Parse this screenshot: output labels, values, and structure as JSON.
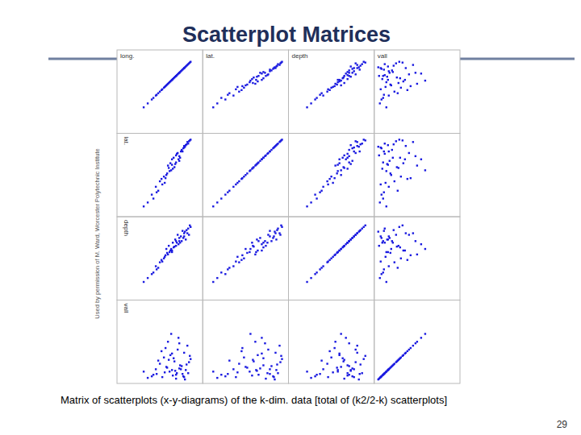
{
  "header": {
    "title": "Scatterplot Matrices"
  },
  "chart_data": {
    "type": "scatter_matrix",
    "color": "#1a1ae0",
    "marker": "square",
    "tick_labels": false,
    "xlim": [
      0,
      100
    ],
    "ylim": [
      0,
      100
    ],
    "dimensions": [
      {
        "name": "long.",
        "values": [
          62,
          70,
          75,
          80,
          55,
          45,
          85,
          68,
          72,
          40,
          58,
          82,
          65,
          78,
          50,
          35,
          88,
          60,
          74,
          66,
          84,
          56,
          70,
          48,
          77,
          63,
          81,
          52,
          69,
          86,
          42,
          73,
          59,
          79,
          67,
          30,
          83,
          57,
          71,
          64,
          76,
          53,
          87,
          61,
          74,
          46,
          80,
          65
        ]
      },
      {
        "name": "lat.",
        "values": [
          55,
          66,
          72,
          85,
          48,
          35,
          90,
          60,
          78,
          25,
          50,
          88,
          70,
          80,
          42,
          15,
          95,
          62,
          68,
          58,
          92,
          40,
          75,
          30,
          82,
          65,
          86,
          45,
          64,
          93,
          20,
          70,
          52,
          84,
          72,
          10,
          89,
          46,
          77,
          56,
          80,
          38,
          94,
          59,
          74,
          28,
          87,
          63
        ]
      },
      {
        "name": "depth",
        "values": [
          58,
          72,
          70,
          78,
          50,
          40,
          88,
          65,
          80,
          30,
          62,
          74,
          60,
          85,
          45,
          25,
          90,
          55,
          76,
          70,
          82,
          52,
          66,
          38,
          72,
          60,
          84,
          48,
          74,
          80,
          32,
          68,
          57,
          76,
          64,
          20,
          86,
          54,
          70,
          62,
          78,
          46,
          92,
          66,
          72,
          36,
          82,
          58
        ]
      },
      {
        "name": "vall",
        "values": [
          12,
          8,
          20,
          5,
          30,
          15,
          10,
          25,
          40,
          6,
          18,
          14,
          35,
          9,
          22,
          4,
          28,
          50,
          16,
          7,
          45,
          11,
          3,
          26,
          19,
          33,
          2,
          38,
          13,
          24,
          8,
          55,
          17,
          6,
          29,
          12,
          21,
          42,
          10,
          60,
          15,
          5,
          32,
          27,
          48,
          9,
          36,
          14
        ]
      }
    ]
  },
  "caption": "Matrix of scatterplots (x-y-diagrams) of the k-dim. data [total of (k2/2-k) scatterplots]",
  "page_number": "29",
  "credit": "Used by permission of M. Ward, Worcester Polytechnic Institute"
}
